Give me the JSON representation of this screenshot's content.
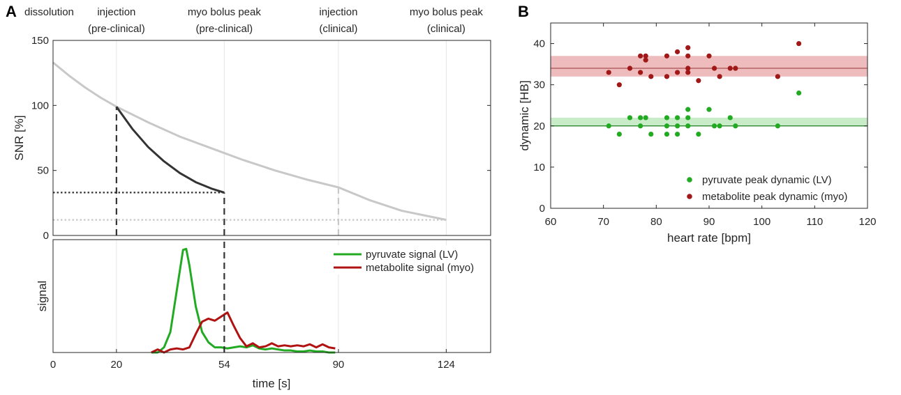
{
  "panels": {
    "a": "A",
    "b": "B"
  },
  "annotations": [
    {
      "lines": [
        "dissolution"
      ],
      "at": 0
    },
    {
      "lines": [
        "injection",
        "(pre-clinical)"
      ],
      "at": 20
    },
    {
      "lines": [
        "myo bolus peak",
        "(pre-clinical)"
      ],
      "at": 54
    },
    {
      "lines": [
        "injection",
        "(clinical)"
      ],
      "at": 90
    },
    {
      "lines": [
        "myo bolus peak",
        "(clinical)"
      ],
      "at": 124
    }
  ],
  "chart_data": [
    {
      "id": "snr",
      "type": "line",
      "title": "",
      "xlabel": "",
      "ylabel": "SNR [%]",
      "xlim": [
        0,
        138
      ],
      "ylim": [
        0,
        150
      ],
      "yticks": [
        0,
        50,
        100,
        150
      ],
      "x_gridlines": [
        20,
        54,
        90,
        124
      ],
      "series": [
        {
          "name": "SNR decay (clinical)",
          "color": "#c8c8c8",
          "style": "solid",
          "x": [
            0,
            5,
            10,
            15,
            20,
            30,
            40,
            50,
            60,
            70,
            80,
            90,
            100,
            110,
            120,
            124
          ],
          "y": [
            133,
            123,
            114,
            106,
            99,
            87,
            76,
            67,
            58,
            50,
            43,
            37,
            27,
            19,
            14,
            12
          ]
        },
        {
          "name": "SNR decay (pre-clinical)",
          "color": "#333333",
          "style": "solid",
          "x": [
            20,
            25,
            30,
            35,
            40,
            45,
            50,
            54
          ],
          "y": [
            99,
            82,
            68,
            57,
            48,
            41,
            36,
            33
          ]
        },
        {
          "name": "pre-clinical injection",
          "color": "#333333",
          "style": "dashed",
          "x": [
            20,
            20
          ],
          "y": [
            0,
            99
          ]
        },
        {
          "name": "pre-clinical myo peak",
          "color": "#333333",
          "style": "dashed",
          "x": [
            54,
            54
          ],
          "y": [
            0,
            33
          ]
        },
        {
          "name": "pre-clinical level",
          "color": "#333333",
          "style": "dotted",
          "x": [
            0,
            54
          ],
          "y": [
            33,
            33
          ]
        },
        {
          "name": "clinical injection",
          "color": "#c8c8c8",
          "style": "dashed",
          "x": [
            90,
            90
          ],
          "y": [
            0,
            37
          ]
        },
        {
          "name": "clinical level",
          "color": "#c8c8c8",
          "style": "dotted",
          "x": [
            0,
            124
          ],
          "y": [
            12,
            12
          ]
        }
      ]
    },
    {
      "id": "signal",
      "type": "line",
      "title": "",
      "xlabel": "time [s]",
      "ylabel": "signal",
      "xlim": [
        0,
        138
      ],
      "ylim": [
        0,
        1.1
      ],
      "xticks": [
        0,
        20,
        54,
        90,
        124
      ],
      "x_gridlines": [
        20,
        54,
        90,
        124
      ],
      "legend": "top-right",
      "series": [
        {
          "name": "pyruvate signal (LV)",
          "color": "#22aa22",
          "x": [
            31,
            33,
            35,
            37,
            39,
            41,
            42,
            43,
            45,
            47,
            49,
            51,
            53,
            55,
            57,
            59,
            61,
            63,
            65,
            67,
            69,
            71,
            73,
            75,
            77,
            79,
            81,
            83,
            85,
            87,
            89
          ],
          "y": [
            0.0,
            0.0,
            0.05,
            0.2,
            0.6,
            1.0,
            1.01,
            0.85,
            0.45,
            0.2,
            0.1,
            0.05,
            0.05,
            0.04,
            0.05,
            0.06,
            0.05,
            0.07,
            0.04,
            0.03,
            0.04,
            0.03,
            0.02,
            0.02,
            0.01,
            0.01,
            0.02,
            0.01,
            0.01,
            0.0,
            0.0
          ]
        },
        {
          "name": "metabolite signal (myo)",
          "color": "#b01212",
          "x": [
            31,
            33,
            35,
            37,
            39,
            41,
            43,
            45,
            47,
            49,
            51,
            53,
            55,
            57,
            59,
            61,
            63,
            65,
            67,
            69,
            71,
            73,
            75,
            77,
            79,
            81,
            83,
            85,
            87,
            89
          ],
          "y": [
            0.0,
            0.03,
            0.0,
            0.03,
            0.04,
            0.03,
            0.05,
            0.18,
            0.3,
            0.33,
            0.31,
            0.35,
            0.39,
            0.26,
            0.14,
            0.06,
            0.09,
            0.05,
            0.06,
            0.09,
            0.06,
            0.07,
            0.06,
            0.07,
            0.06,
            0.08,
            0.05,
            0.08,
            0.05,
            0.04
          ]
        },
        {
          "name": "myo peak marker",
          "color": "#333333",
          "style": "dashed",
          "x": [
            54,
            54
          ],
          "y": [
            0,
            1.1
          ]
        }
      ]
    },
    {
      "id": "heartrate",
      "type": "scatter",
      "title": "",
      "xlabel": "heart rate [bpm]",
      "ylabel": "dynamic [HB]",
      "xlim": [
        60,
        120
      ],
      "ylim": [
        0,
        45
      ],
      "xticks": [
        60,
        70,
        80,
        90,
        100,
        110,
        120
      ],
      "yticks": [
        0,
        10,
        20,
        30,
        40
      ],
      "legend": "bottom-right",
      "bands": [
        {
          "name": "metabolite band",
          "y_range": [
            32,
            37
          ],
          "center": 34,
          "fill": "#eebcbc",
          "line": "#a85050"
        },
        {
          "name": "pyruvate band",
          "y_range": [
            20,
            22
          ],
          "center": 20,
          "fill": "#c8ecc8",
          "line": "#1e7a1e"
        }
      ],
      "series": [
        {
          "name": "pyruvate peak dynamic (LV)",
          "color": "#22aa22",
          "points": [
            [
              71,
              20
            ],
            [
              73,
              18
            ],
            [
              75,
              22
            ],
            [
              77,
              22
            ],
            [
              77,
              20
            ],
            [
              78,
              22
            ],
            [
              79,
              18
            ],
            [
              82,
              22
            ],
            [
              82,
              20
            ],
            [
              82,
              18
            ],
            [
              84,
              22
            ],
            [
              84,
              20
            ],
            [
              84,
              18
            ],
            [
              86,
              24
            ],
            [
              86,
              22
            ],
            [
              86,
              20
            ],
            [
              88,
              18
            ],
            [
              90,
              24
            ],
            [
              91,
              20
            ],
            [
              92,
              20
            ],
            [
              94,
              22
            ],
            [
              95,
              20
            ],
            [
              103,
              20
            ],
            [
              107,
              28
            ]
          ]
        },
        {
          "name": "metabolite peak dynamic (myo)",
          "color": "#a01818",
          "points": [
            [
              71,
              33
            ],
            [
              73,
              30
            ],
            [
              75,
              34
            ],
            [
              77,
              37
            ],
            [
              77,
              33
            ],
            [
              78,
              37
            ],
            [
              78,
              36
            ],
            [
              79,
              32
            ],
            [
              82,
              37
            ],
            [
              82,
              32
            ],
            [
              84,
              38
            ],
            [
              84,
              33
            ],
            [
              86,
              39
            ],
            [
              86,
              37
            ],
            [
              86,
              34
            ],
            [
              86,
              33
            ],
            [
              88,
              31
            ],
            [
              90,
              37
            ],
            [
              91,
              34
            ],
            [
              92,
              32
            ],
            [
              94,
              34
            ],
            [
              95,
              34
            ],
            [
              103,
              32
            ],
            [
              107,
              40
            ]
          ]
        }
      ]
    }
  ]
}
